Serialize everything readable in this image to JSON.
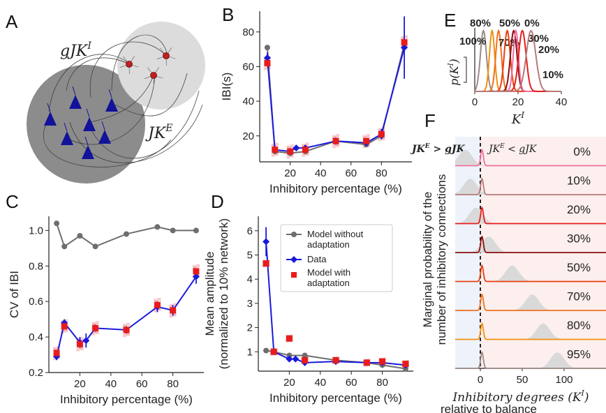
{
  "panels": {
    "A": "A",
    "B": "B",
    "C": "C",
    "D": "D",
    "E": "E",
    "F": "F"
  },
  "schematic": {
    "top_label": "gJK^I",
    "right_label": "JK^E"
  },
  "colors": {
    "data": "#1a1adb",
    "model_adapt": "#e81c1c",
    "model_noadapt": "#6e6e6e",
    "scatter": "#f4a3a3",
    "neuron_exc": "#12129a",
    "neuron_inh": "#e01010"
  },
  "chart_data": [
    {
      "id": "B",
      "type": "line",
      "xlabel": "Inhibitory percentage (%)",
      "ylabel": "IBI(s)",
      "xlim": [
        0,
        100
      ],
      "ylim": [
        5,
        92
      ],
      "xticks": [
        20,
        40,
        60,
        80
      ],
      "yticks": [
        20,
        40,
        60,
        80
      ],
      "series": [
        {
          "name": "Model without adaptation",
          "x": [
            5,
            10,
            20,
            30,
            50,
            70,
            80,
            95
          ],
          "y": [
            71,
            11,
            10,
            11,
            17,
            15,
            20,
            73
          ]
        },
        {
          "name": "Data",
          "x": [
            5,
            10,
            20,
            24,
            30,
            50,
            70,
            80,
            95
          ],
          "y": [
            65,
            12,
            11,
            13,
            13,
            17,
            16,
            21,
            71
          ],
          "err": [
            3,
            1,
            1,
            1,
            1,
            2,
            2,
            3,
            18
          ]
        },
        {
          "name": "Model with adaptation",
          "x": [
            5,
            10,
            20,
            30,
            50,
            70,
            80,
            95
          ],
          "y": [
            62,
            12,
            11,
            12,
            17,
            17,
            21,
            74
          ]
        }
      ]
    },
    {
      "id": "C",
      "type": "line",
      "xlabel": "Inhibitory percentage (%)",
      "ylabel": "CV of IBI",
      "xlim": [
        0,
        100
      ],
      "ylim": [
        0.2,
        1.08
      ],
      "xticks": [
        20,
        40,
        60,
        80
      ],
      "yticks": [
        0.2,
        0.4,
        0.6,
        0.8,
        1.0
      ],
      "series": [
        {
          "name": "Model without adaptation",
          "x": [
            5,
            10,
            20,
            30,
            50,
            70,
            80,
            95
          ],
          "y": [
            1.04,
            0.91,
            0.97,
            0.91,
            0.98,
            1.02,
            1.0,
            1.0
          ]
        },
        {
          "name": "Data",
          "x": [
            5,
            10,
            20,
            24,
            30,
            50,
            70,
            80,
            95
          ],
          "y": [
            0.29,
            0.48,
            0.37,
            0.38,
            0.45,
            0.44,
            0.57,
            0.55,
            0.74
          ],
          "err": [
            0.02,
            0.02,
            0.03,
            0.04,
            0.02,
            0.02,
            0.03,
            0.03,
            0.04
          ]
        },
        {
          "name": "Model with adaptation",
          "x": [
            5,
            10,
            20,
            30,
            50,
            70,
            80,
            95
          ],
          "y": [
            0.31,
            0.46,
            0.36,
            0.45,
            0.44,
            0.58,
            0.55,
            0.77
          ]
        }
      ]
    },
    {
      "id": "D",
      "type": "line",
      "xlabel": "Inhibitory percentage (%)",
      "ylabel": "Mean amplitude",
      "ylabel2": "(normalized to 10% network)",
      "xlim": [
        0,
        100
      ],
      "ylim": [
        0.2,
        6.6
      ],
      "xticks": [
        20,
        40,
        60,
        80
      ],
      "yticks": [
        1,
        2,
        3,
        4,
        5,
        6
      ],
      "legend": [
        {
          "name": "Model without",
          "name2": "adaptation"
        },
        {
          "name": "Data",
          "name2": ""
        },
        {
          "name": "Model with",
          "name2": "adaptation"
        }
      ],
      "series": [
        {
          "name": "Model without adaptation",
          "x": [
            5,
            10,
            20,
            30,
            50,
            70,
            80,
            95
          ],
          "y": [
            1.05,
            1.0,
            0.85,
            0.85,
            0.65,
            0.55,
            0.45,
            0.3
          ]
        },
        {
          "name": "Data",
          "x": [
            5,
            10,
            20,
            24,
            30,
            50,
            70,
            80,
            95
          ],
          "y": [
            5.55,
            1.0,
            0.7,
            0.7,
            0.55,
            0.6,
            0.55,
            0.55,
            0.45
          ],
          "err": [
            0.6,
            0.1,
            0.1,
            0.1,
            0.1,
            0.1,
            0.1,
            0.1,
            0.1
          ]
        },
        {
          "name": "Model with adaptation",
          "x": [
            5,
            10,
            20,
            30,
            50,
            70,
            80,
            95
          ],
          "y": [
            4.65,
            1.0,
            1.55,
            0.65,
            0.65,
            0.55,
            0.6,
            0.5
          ]
        }
      ]
    },
    {
      "id": "E",
      "type": "line",
      "xlabel": "K^I",
      "ylabel": "p(K^I)",
      "xlim": [
        0,
        40
      ],
      "xticks": [
        0,
        20,
        40
      ],
      "series": [
        {
          "name": "100%",
          "mu": 4,
          "sd": 1.4,
          "color": "#9a8a86"
        },
        {
          "name": "80%",
          "mu": 8,
          "sd": 1.2,
          "color": "#f09010"
        },
        {
          "name": "70%",
          "mu": 11,
          "sd": 1.3,
          "color": "#f07020"
        },
        {
          "name": "50%",
          "mu": 15,
          "sd": 1.4,
          "color": "#e84010"
        },
        {
          "name": "30%",
          "mu": 18,
          "sd": 1.5,
          "color": "#8a0e0e"
        },
        {
          "name": "0%",
          "mu": 19,
          "sd": 1.2,
          "color": "#f070a0"
        },
        {
          "name": "20%",
          "mu": 22,
          "sd": 1.7,
          "color": "#e81c1c"
        },
        {
          "name": "10%",
          "mu": 26,
          "sd": 2.2,
          "color": "#b87a78"
        }
      ]
    },
    {
      "id": "F",
      "type": "area",
      "xlabel": "Inhibitory degrees (K^I)",
      "xlabel2": "relative to balance",
      "ylabel": "Marginal probability of the",
      "ylabel2": "number of inhibitory connections",
      "xlim": [
        -30,
        150
      ],
      "xticks": [
        0,
        50,
        100
      ],
      "left_note": "JK^E > gJK^I",
      "right_note": "JK^E < gJK^I",
      "rows": [
        {
          "label": "0%",
          "color": "#f070a0",
          "gray_mu": -18
        },
        {
          "label": "10%",
          "color": "#b87a78",
          "gray_mu": -12
        },
        {
          "label": "20%",
          "color": "#e81c1c",
          "gray_mu": -5
        },
        {
          "label": "30%",
          "color": "#8a0e0e",
          "gray_mu": 10
        },
        {
          "label": "50%",
          "color": "#e84010",
          "gray_mu": 38
        },
        {
          "label": "70%",
          "color": "#f07020",
          "gray_mu": 62
        },
        {
          "label": "80%",
          "color": "#f09010",
          "gray_mu": 75
        },
        {
          "label": "95%",
          "color": "#9a8a86",
          "gray_mu": 92
        }
      ]
    }
  ]
}
